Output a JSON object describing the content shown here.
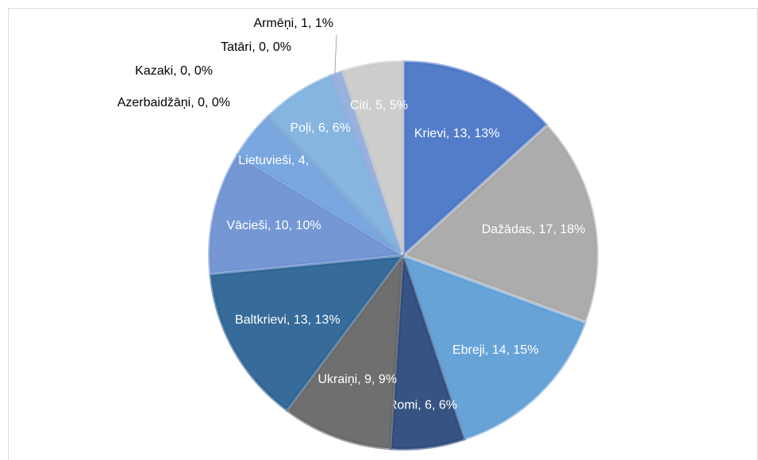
{
  "chart_data": {
    "type": "pie",
    "categories": [
      "Krievi",
      "Dažādas",
      "Ebreji",
      "Romi",
      "Ukraiņi",
      "Baltkrievi",
      "Vācieši",
      "Lietuvieši",
      "Azerbaidžāņi",
      "Kazaki",
      "Tatāri",
      "Poļi",
      "Armēņi",
      "Citi"
    ],
    "values": [
      13,
      17,
      14,
      6,
      9,
      13,
      10,
      4,
      0,
      0,
      0,
      6,
      1,
      5
    ],
    "value_labels": [
      ", 13, 13%",
      ", 17, 18%",
      ", 14, 15%",
      ", 6, 6%",
      ", 9, 9%",
      ", 13, 13%",
      ", 10, 10%",
      ", 4, 4%",
      ", 0, 0%",
      ", 0, 0%",
      ", 0, 0%",
      ", 6, 6%",
      ", 1, 1%",
      ", 5, 5%"
    ],
    "colors": [
      "#4472c4",
      "#a5a5a5",
      "#5b9bd5",
      "#264478",
      "#636363",
      "#255e91",
      "#698ed0",
      "#6fa0dc",
      "#bcbcbc",
      "#9e9e9e",
      "#8faadc",
      "#7cafdd",
      "#8faadc",
      "#c9c9c9"
    ]
  }
}
